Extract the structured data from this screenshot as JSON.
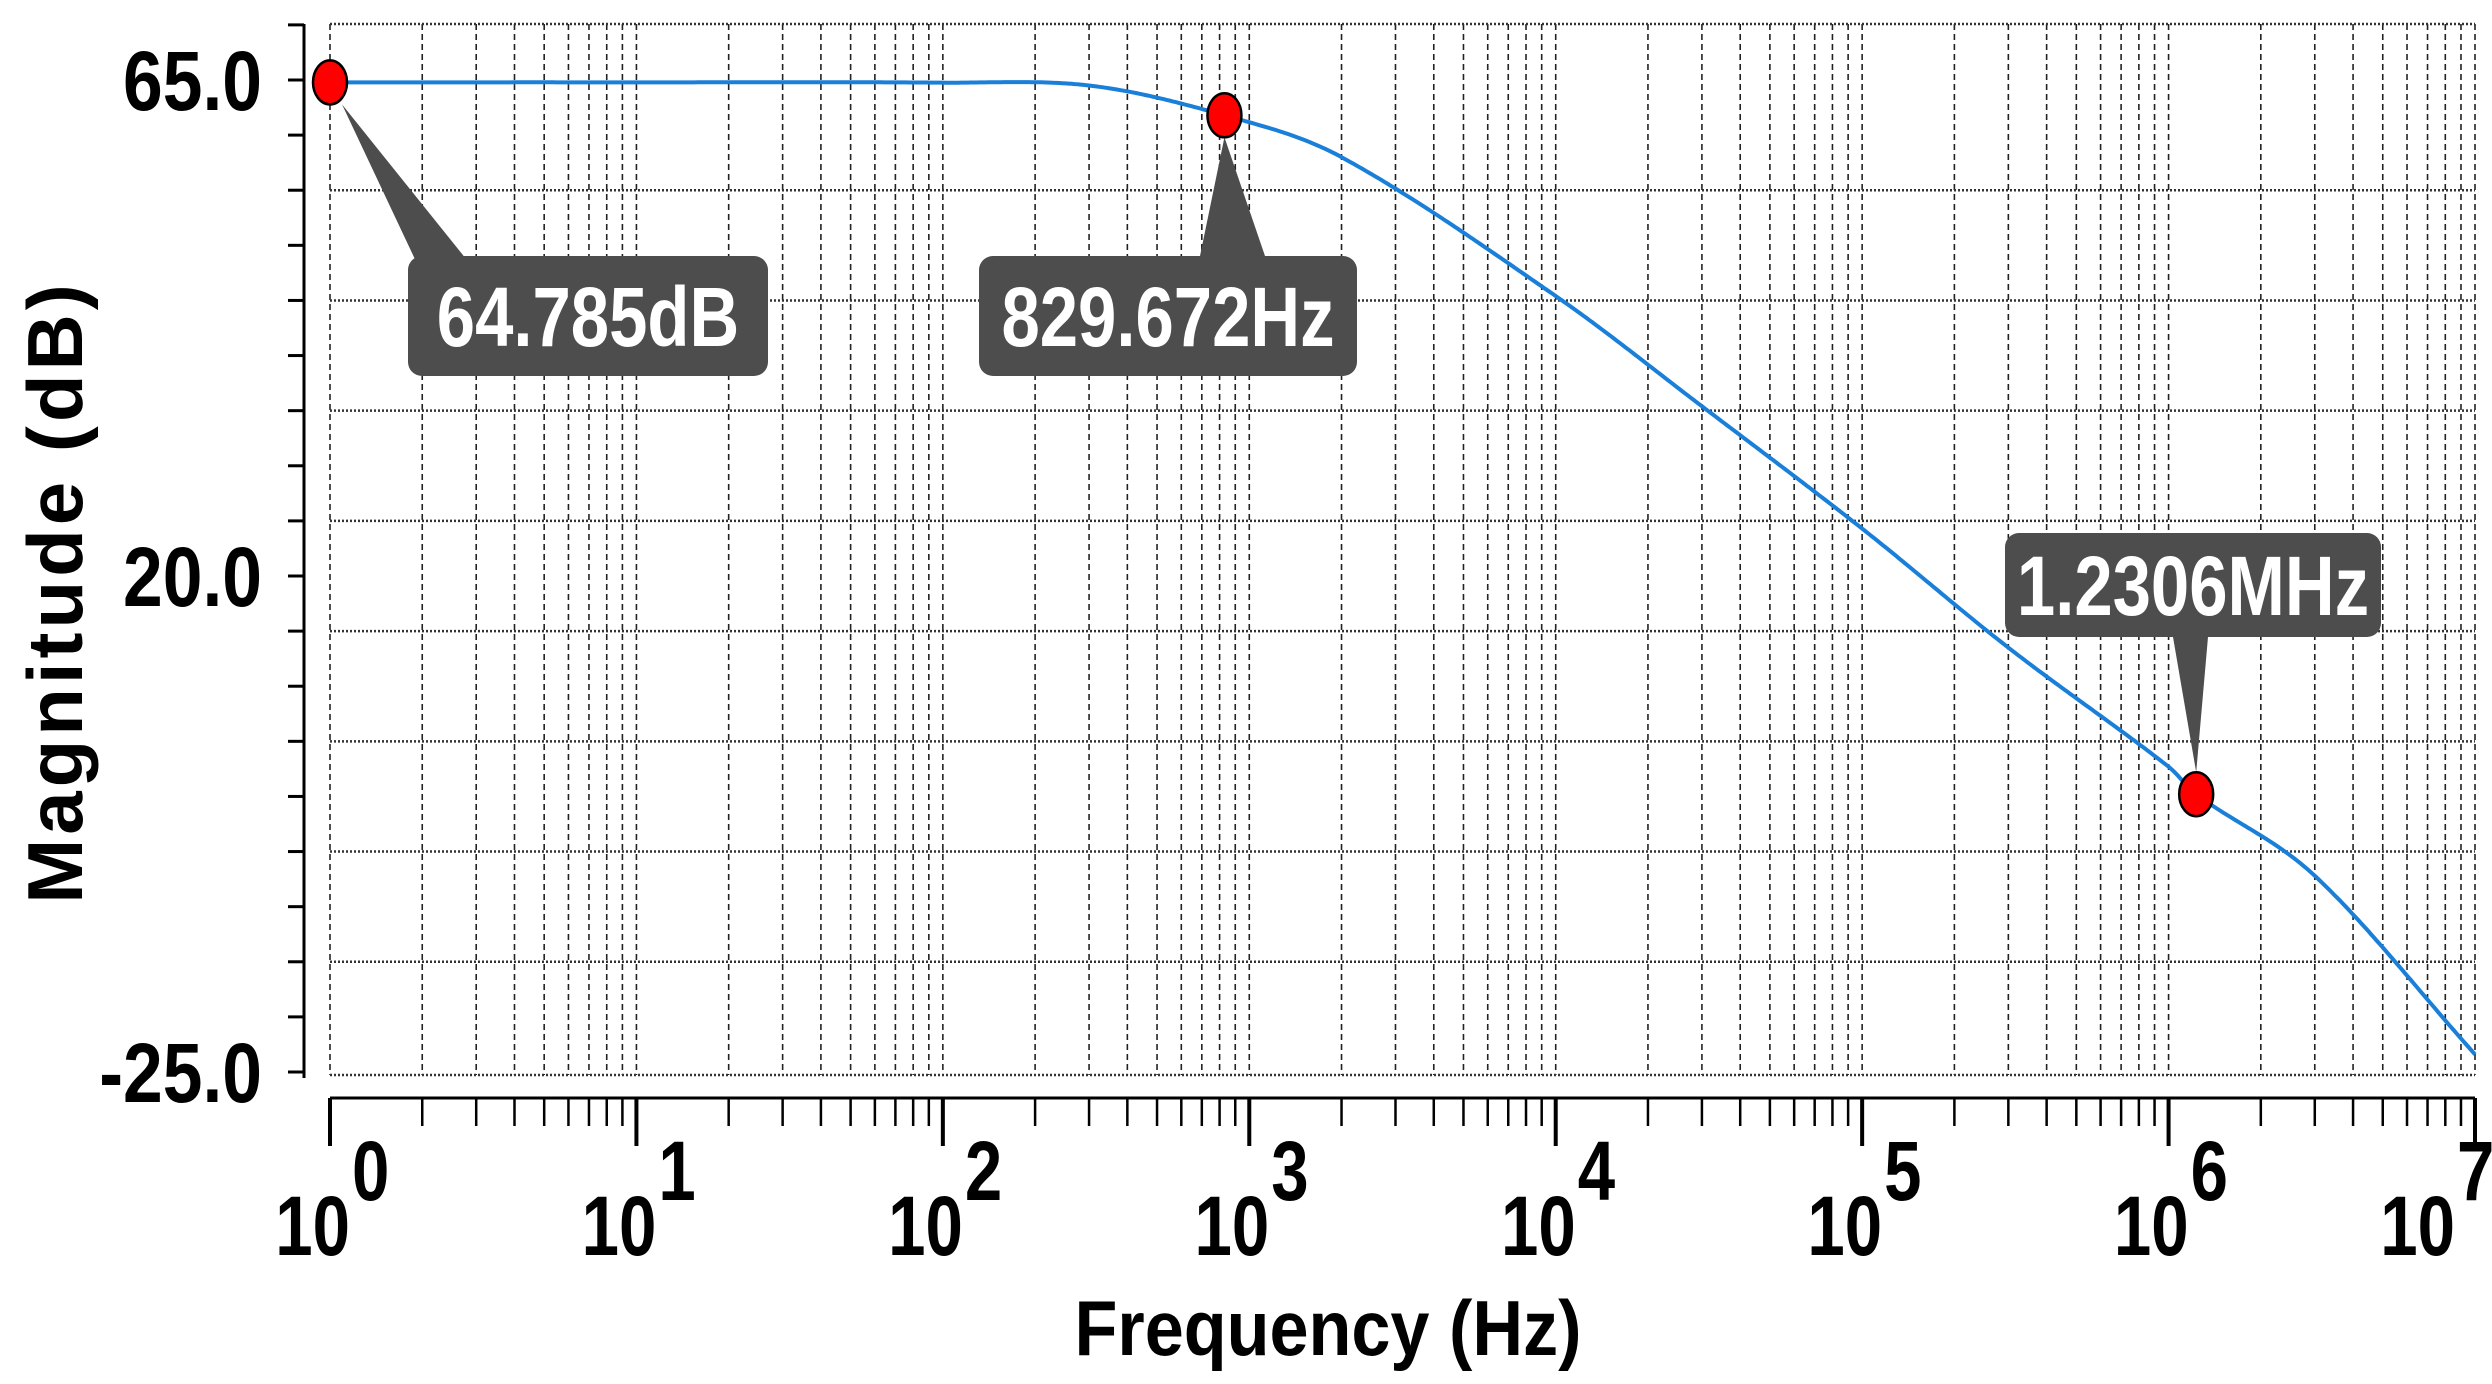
{
  "chart_data": {
    "type": "line",
    "title": "",
    "xlabel": "Frequency (Hz)",
    "ylabel": "Magnitude (dB)",
    "x_scale": "log",
    "xlim": [
      1,
      10000000
    ],
    "ylim": [
      -25,
      70
    ],
    "grid": true,
    "x_ticks": [
      {
        "base": "10",
        "exp": "0",
        "value": 1
      },
      {
        "base": "10",
        "exp": "1",
        "value": 10
      },
      {
        "base": "10",
        "exp": "2",
        "value": 100
      },
      {
        "base": "10",
        "exp": "3",
        "value": 1000
      },
      {
        "base": "10",
        "exp": "4",
        "value": 10000
      },
      {
        "base": "10",
        "exp": "5",
        "value": 100000
      },
      {
        "base": "10",
        "exp": "6",
        "value": 1000000
      },
      {
        "base": "10",
        "exp": "7",
        "value": 10000000
      }
    ],
    "y_ticks": [
      {
        "label": "65.0",
        "value": 65
      },
      {
        "label": "20.0",
        "value": 20
      },
      {
        "label": "-25.0",
        "value": -25
      }
    ],
    "series": [
      {
        "color": "#1a7fd9",
        "x": [
          1,
          10,
          100,
          300,
          829.672,
          2000,
          10000,
          30000,
          100000,
          300000,
          1000000,
          1230600,
          3000000,
          10000000
        ],
        "y": [
          64.785,
          64.785,
          64.76,
          64.5,
          61.8,
          58,
          45.4,
          35.4,
          24.3,
          13.5,
          2.7,
          0.2,
          -7.2,
          -23.4
        ]
      }
    ],
    "markers": [
      {
        "x": 1,
        "y": 64.785,
        "label": "64.785dB"
      },
      {
        "x": 829.672,
        "y": 61.8,
        "label": "829.672Hz"
      },
      {
        "x": 1230600,
        "y": 0.2,
        "label": "1.2306MHz"
      }
    ],
    "colors": {
      "line": "#1a7fd9",
      "marker": "#ff0000",
      "annotation": "#4d4d4d"
    }
  }
}
